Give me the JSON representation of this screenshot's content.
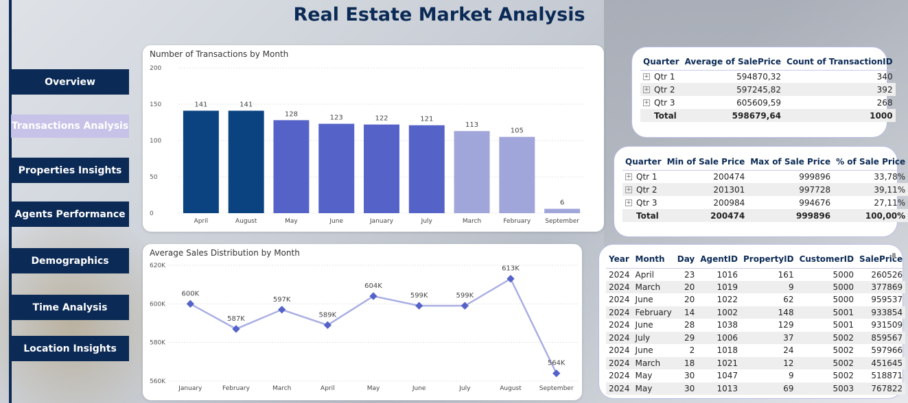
{
  "title": "Real Estate Market Analysis",
  "nav": [
    {
      "label": "Overview",
      "active": false
    },
    {
      "label": "Transactions Analysis",
      "active": true
    },
    {
      "label": "Properties Insights",
      "active": false
    },
    {
      "label": "Agents Performance",
      "active": false
    },
    {
      "label": "Demographics",
      "active": false
    },
    {
      "label": "Time Analysis",
      "active": false
    },
    {
      "label": "Location Insights",
      "active": false
    }
  ],
  "chart_data": [
    {
      "type": "bar",
      "title": "Number of Transactions by Month",
      "categories": [
        "April",
        "August",
        "May",
        "June",
        "January",
        "July",
        "March",
        "February",
        "September"
      ],
      "values": [
        141,
        141,
        128,
        123,
        122,
        121,
        113,
        105,
        6
      ],
      "colors": [
        "#0b4380",
        "#0b4380",
        "#5563c9",
        "#5563c9",
        "#5563c9",
        "#5563c9",
        "#a1a6da",
        "#a1a6da",
        "#a1a6da"
      ],
      "yticks": [
        "0",
        "50",
        "100",
        "150",
        "200"
      ],
      "ylim": [
        0,
        200
      ],
      "grid": true
    },
    {
      "type": "line",
      "title": "Average Sales Distribution by Month",
      "categories": [
        "January",
        "February",
        "March",
        "April",
        "May",
        "June",
        "July",
        "August",
        "September"
      ],
      "values": [
        600,
        587,
        597,
        589,
        604,
        599,
        599,
        613,
        564
      ],
      "labels": [
        "600K",
        "587K",
        "597K",
        "589K",
        "604K",
        "599K",
        "599K",
        "613K",
        "564K"
      ],
      "yticks": [
        "560K",
        "580K",
        "600K",
        "620K"
      ],
      "ylim": [
        560,
        620
      ],
      "line_color": "#a9aee3",
      "marker_color": "#5563c9",
      "grid": true
    }
  ],
  "table1": {
    "headers": [
      "Quarter",
      "Average of SalePrice",
      "Count of TransactionID"
    ],
    "rows": [
      [
        "Qtr 1",
        "594870,32",
        "340"
      ],
      [
        "Qtr 2",
        "597245,82",
        "392"
      ],
      [
        "Qtr 3",
        "605609,59",
        "268"
      ]
    ],
    "total": [
      "Total",
      "598679,64",
      "1000"
    ]
  },
  "table2": {
    "headers": [
      "Quarter",
      "Min of Sale Price",
      "Max of Sale Price",
      "% of Sale Price"
    ],
    "rows": [
      [
        "Qtr 1",
        "200474",
        "999896",
        "33,78%"
      ],
      [
        "Qtr 2",
        "201301",
        "997728",
        "39,11%"
      ],
      [
        "Qtr 3",
        "200984",
        "994676",
        "27,11%"
      ]
    ],
    "total": [
      "Total",
      "200474",
      "999896",
      "100,00%"
    ]
  },
  "table3": {
    "headers": [
      "Year",
      "Month",
      "Day",
      "AgentID",
      "PropertyID",
      "CustomerID",
      "SalePrice"
    ],
    "rows": [
      [
        "2024",
        "April",
        "23",
        "1016",
        "161",
        "5000",
        "260526"
      ],
      [
        "2024",
        "March",
        "20",
        "1019",
        "9",
        "5000",
        "377869"
      ],
      [
        "2024",
        "June",
        "20",
        "1022",
        "62",
        "5000",
        "959537"
      ],
      [
        "2024",
        "February",
        "14",
        "1002",
        "148",
        "5001",
        "933854"
      ],
      [
        "2024",
        "June",
        "28",
        "1038",
        "129",
        "5001",
        "931509"
      ],
      [
        "2024",
        "July",
        "29",
        "1006",
        "37",
        "5002",
        "859567"
      ],
      [
        "2024",
        "June",
        "2",
        "1018",
        "24",
        "5002",
        "597966"
      ],
      [
        "2024",
        "March",
        "18",
        "1021",
        "12",
        "5002",
        "451645"
      ],
      [
        "2024",
        "May",
        "30",
        "1047",
        "9",
        "5002",
        "518871"
      ],
      [
        "2024",
        "May",
        "30",
        "1013",
        "69",
        "5003",
        "767822"
      ]
    ]
  }
}
